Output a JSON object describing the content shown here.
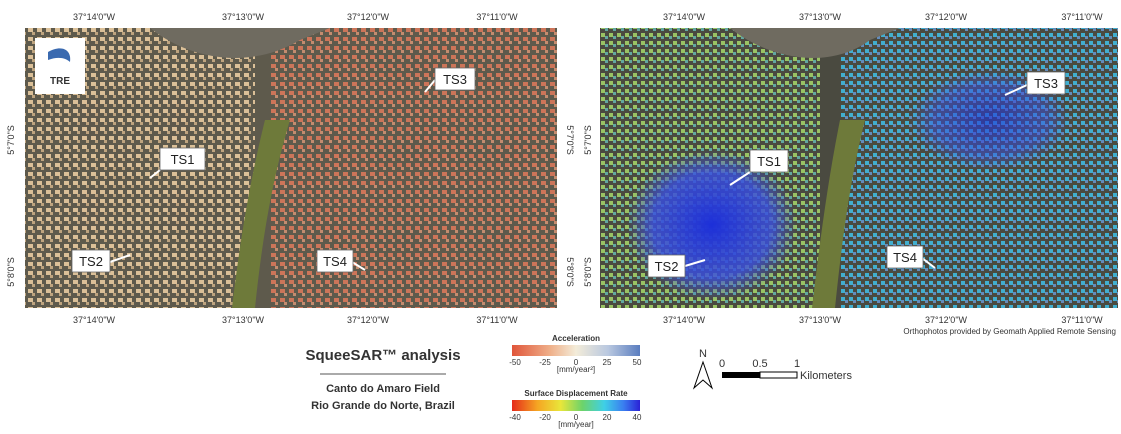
{
  "maps": [
    {
      "top_labels": [
        "37°14'0\"W",
        "37°13'0\"W",
        "37°12'0\"W",
        "37°11'0\"W"
      ],
      "bottom_labels": [
        "37°14'0\"W",
        "37°13'0\"W",
        "37°12'0\"W",
        "37°11'0\"W"
      ],
      "left_labels": [
        "5°7'0\"S",
        "5°8'0\"S"
      ],
      "right_labels": [
        "5°7'0\"S",
        "5°8'0\"S"
      ],
      "callouts": [
        "TS1",
        "TS2",
        "TS3",
        "TS4"
      ]
    },
    {
      "top_labels": [
        "37°14'0\"W",
        "37°13'0\"W",
        "37°12'0\"W",
        "37°11'0\"W"
      ],
      "bottom_labels": [
        "37°14'0\"W",
        "37°13'0\"W",
        "37°12'0\"W",
        "37°11'0\"W"
      ],
      "left_labels": [
        "5°7'0\"S",
        "5°8'0\"S"
      ],
      "callouts": [
        "TS1",
        "TS2",
        "TS3",
        "TS4"
      ]
    }
  ],
  "logo": "TRE",
  "credit": "Orthophotos provided by Geomath Applied Remote Sensing",
  "title": {
    "main": "SqueeSAR™ analysis",
    "line1": "Canto do Amaro Field",
    "line2": "Rio Grande do Norte, Brazil"
  },
  "legend": {
    "acceleration": {
      "title": "Acceleration",
      "ticks": [
        -50,
        -25,
        0,
        25,
        50
      ],
      "unit": "[mm/year²]"
    },
    "displacement": {
      "title": "Surface Displacement Rate",
      "ticks": [
        -40,
        -20,
        0,
        20,
        40
      ],
      "unit": "[mm/year]"
    }
  },
  "scale_bar": {
    "north": "N",
    "ticks": [
      "0",
      "0.5",
      "1"
    ],
    "unit": "Kilometers"
  }
}
